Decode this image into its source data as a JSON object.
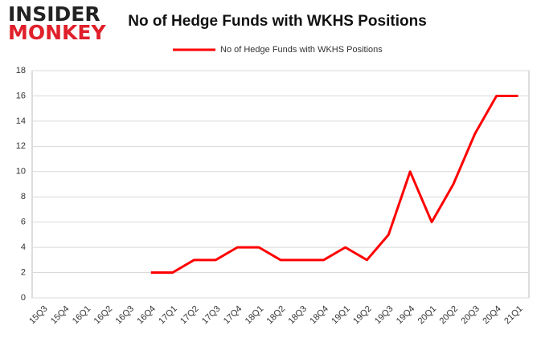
{
  "logo": {
    "line1": "INSIDER",
    "line2": "MONKEY"
  },
  "chart_data": {
    "type": "line",
    "title": "No of Hedge Funds with WKHS Positions",
    "categories": [
      "15Q3",
      "15Q4",
      "16Q1",
      "16Q2",
      "16Q3",
      "16Q4",
      "17Q1",
      "17Q2",
      "17Q3",
      "17Q4",
      "18Q1",
      "18Q2",
      "18Q3",
      "18Q4",
      "19Q1",
      "19Q2",
      "19Q3",
      "19Q4",
      "20Q1",
      "20Q2",
      "20Q3",
      "20Q4",
      "21Q1"
    ],
    "series": [
      {
        "name": "No of Hedge Funds with WKHS Positions",
        "color": "#ff0000",
        "values": [
          null,
          null,
          null,
          null,
          null,
          2,
          2,
          3,
          3,
          4,
          4,
          3,
          3,
          3,
          4,
          3,
          5,
          10,
          6,
          9,
          13,
          16,
          16
        ]
      }
    ],
    "ylim": [
      0,
      18
    ],
    "yticks": [
      0,
      2,
      4,
      6,
      8,
      10,
      12,
      14,
      16,
      18
    ],
    "grid": true,
    "legend": "top"
  }
}
